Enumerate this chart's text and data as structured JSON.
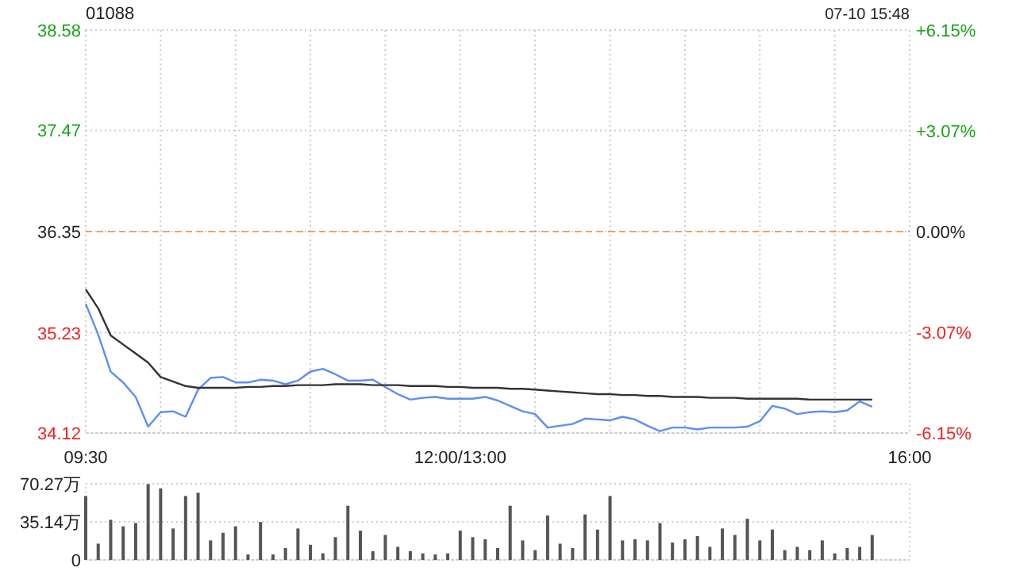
{
  "chart_data": [
    {
      "type": "line",
      "title": "01088",
      "subtitle": "07-10 15:48",
      "grid": true,
      "categories": [
        "09:30",
        null,
        null,
        null,
        null,
        null,
        null,
        null,
        null,
        null,
        null,
        null,
        null,
        null,
        null,
        null,
        null,
        null,
        null,
        null,
        null,
        null,
        null,
        null,
        null,
        null,
        null,
        null,
        null,
        null,
        "12:00/13:00",
        null,
        null,
        null,
        null,
        null,
        null,
        null,
        null,
        null,
        null,
        null,
        null,
        null,
        null,
        null,
        null,
        null,
        null,
        null,
        null,
        null,
        null,
        null,
        null,
        null,
        null,
        null,
        null,
        null,
        null,
        null,
        null,
        null,
        null,
        null,
        "16:00"
      ],
      "ylim": [
        34.12,
        38.58
      ],
      "yticks": [
        34.12,
        35.23,
        36.35,
        37.47,
        38.58
      ],
      "y2lim": [
        -6.15,
        6.15
      ],
      "y2ticks": [
        {
          "value": -6.15,
          "label": "-6.15%"
        },
        {
          "value": -3.07,
          "label": "-3.07%"
        },
        {
          "value": 0,
          "label": "0.00%"
        },
        {
          "value": 3.07,
          "label": "+3.07%"
        },
        {
          "value": 6.15,
          "label": "+6.15%"
        }
      ],
      "ref_lines": [
        {
          "axis": "y",
          "value": 36.35,
          "color": "#f5a05a",
          "line_style": "dashed"
        }
      ],
      "series": [
        {
          "color": "#5b8ff0",
          "values": [
            35.55,
            35.21,
            34.8,
            34.68,
            34.52,
            34.19,
            34.35,
            34.36,
            34.3,
            34.6,
            34.73,
            34.74,
            34.68,
            34.68,
            34.71,
            34.7,
            34.66,
            34.7,
            34.8,
            34.83,
            34.77,
            34.7,
            34.7,
            34.71,
            34.63,
            34.55,
            34.49,
            34.51,
            34.52,
            34.5,
            34.5,
            34.5,
            34.52,
            34.48,
            34.42,
            34.36,
            34.33,
            34.18,
            34.2,
            34.22,
            34.28,
            34.27,
            34.26,
            34.3,
            34.27,
            34.2,
            34.14,
            34.18,
            34.18,
            34.16,
            34.18,
            34.18,
            34.18,
            34.19,
            34.25,
            34.42,
            34.39,
            34.33,
            34.35,
            34.36,
            34.35,
            34.37,
            34.47,
            34.41,
            null,
            null,
            null
          ]
        },
        {
          "color": "#333333",
          "values": [
            35.71,
            35.5,
            35.2,
            35.1,
            35.0,
            34.9,
            34.74,
            34.69,
            34.64,
            34.62,
            34.62,
            34.62,
            34.62,
            34.63,
            34.63,
            34.64,
            34.64,
            34.65,
            34.65,
            34.65,
            34.66,
            34.66,
            34.66,
            34.65,
            34.65,
            34.65,
            34.64,
            34.64,
            34.64,
            34.63,
            34.63,
            34.62,
            34.62,
            34.62,
            34.61,
            34.61,
            34.6,
            34.59,
            34.58,
            34.57,
            34.56,
            34.55,
            34.55,
            34.54,
            34.54,
            34.53,
            34.53,
            34.52,
            34.52,
            34.52,
            34.51,
            34.51,
            34.51,
            34.5,
            34.5,
            34.5,
            34.5,
            34.5,
            34.49,
            34.49,
            34.49,
            34.49,
            34.49,
            34.49,
            null,
            null,
            null
          ]
        }
      ]
    },
    {
      "type": "bar",
      "grid": "y",
      "tick_labels": "y",
      "categories": [
        null,
        null,
        null,
        null,
        null,
        null,
        null,
        null,
        null,
        null,
        null,
        null,
        null,
        null,
        null,
        null,
        null,
        null,
        null,
        null,
        null,
        null,
        null,
        null,
        null,
        null,
        null,
        null,
        null,
        null,
        null,
        null,
        null,
        null,
        null,
        null,
        null,
        null,
        null,
        null,
        null,
        null,
        null,
        null,
        null,
        null,
        null,
        null,
        null,
        null,
        null,
        null,
        null,
        null,
        null,
        null,
        null,
        null,
        null,
        null,
        null,
        null,
        null,
        null,
        null,
        null,
        null
      ],
      "ylim": [
        0,
        70.27
      ],
      "yticks": [
        0,
        {
          "value": 35.14,
          "label": "35.14万"
        },
        {
          "value": 70.27,
          "label": "70.27万"
        }
      ],
      "series": [
        {
          "color": "#555555",
          "values": [
            59,
            15,
            37,
            31,
            34,
            70,
            66,
            29,
            59,
            62,
            18,
            25,
            31,
            5,
            35,
            5,
            11,
            29,
            14,
            6,
            21,
            50,
            27,
            8,
            23,
            12,
            8,
            6,
            5,
            6,
            27,
            21,
            19,
            11,
            50,
            18,
            9,
            41,
            15,
            11,
            42,
            28,
            59,
            18,
            19,
            18,
            34,
            16,
            19,
            22,
            12,
            29,
            23,
            38,
            18,
            28,
            9,
            12,
            9,
            18,
            6,
            11,
            12,
            23,
            null,
            null,
            null
          ]
        }
      ]
    }
  ]
}
